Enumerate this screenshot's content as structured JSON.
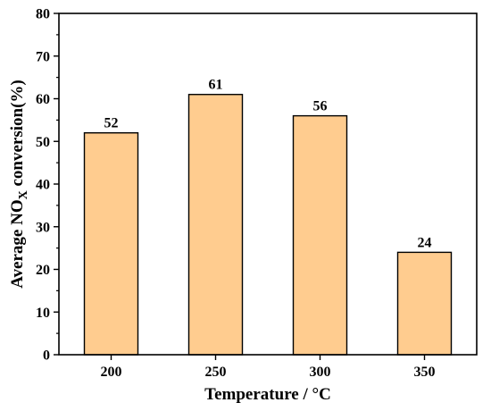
{
  "chart_data": {
    "type": "bar",
    "categories": [
      "200",
      "250",
      "300",
      "350"
    ],
    "values": [
      52,
      61,
      56,
      24
    ],
    "data_labels": [
      "52",
      "61",
      "56",
      "24"
    ],
    "xlabel": "Temperature / °C",
    "ylabel": {
      "prefix": "Average NO",
      "subscript": "X",
      "suffix": " conversion(%)"
    },
    "ylim": [
      0,
      80
    ],
    "yticks": [
      0,
      10,
      20,
      30,
      40,
      50,
      60,
      70,
      80
    ],
    "ytick_labels": [
      "0",
      "10",
      "20",
      "30",
      "40",
      "50",
      "60",
      "70",
      "80"
    ],
    "grid": false,
    "legend": "none",
    "bar_color": "#FFCC8F",
    "bar_edge_color": "#000000"
  }
}
